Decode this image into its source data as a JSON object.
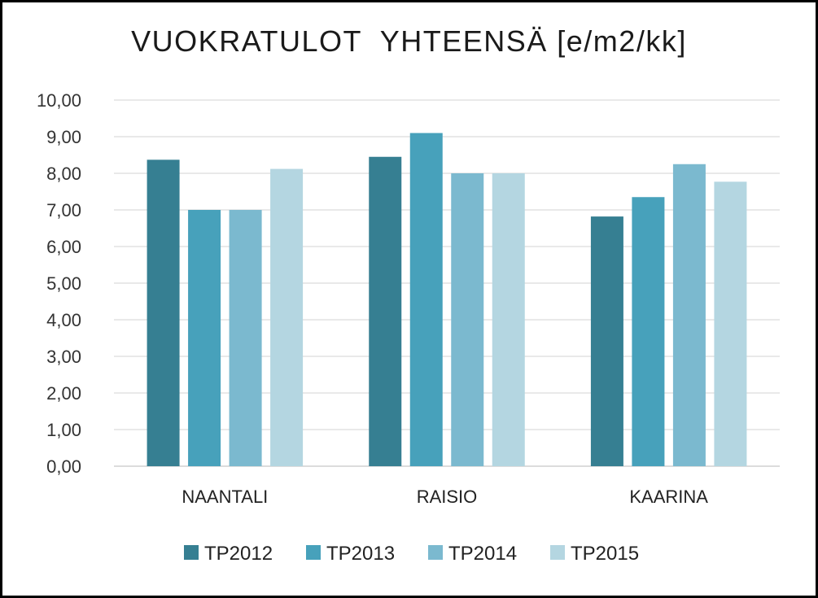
{
  "chart_data": {
    "type": "bar",
    "title": "VUOKRATULOT  YHTEENSÄ [e/m2/kk]",
    "xlabel": "",
    "ylabel": "",
    "categories": [
      "NAANTALI",
      "RAISIO",
      "KAARINA"
    ],
    "series": [
      {
        "name": "TP2012",
        "color": "#367f92",
        "values": [
          8.37,
          8.45,
          6.82
        ]
      },
      {
        "name": "TP2013",
        "color": "#47a1bb",
        "values": [
          7.0,
          9.1,
          7.35
        ]
      },
      {
        "name": "TP2014",
        "color": "#7bb9cf",
        "values": [
          7.0,
          8.0,
          8.25
        ]
      },
      {
        "name": "TP2015",
        "color": "#b4d6e1",
        "values": [
          8.12,
          8.0,
          7.77
        ]
      }
    ],
    "ylim": [
      0,
      10
    ],
    "yticks": [
      "0,00",
      "1,00",
      "2,00",
      "3,00",
      "4,00",
      "5,00",
      "6,00",
      "7,00",
      "8,00",
      "9,00",
      "10,00"
    ],
    "grid": true,
    "legend_position": "bottom"
  }
}
